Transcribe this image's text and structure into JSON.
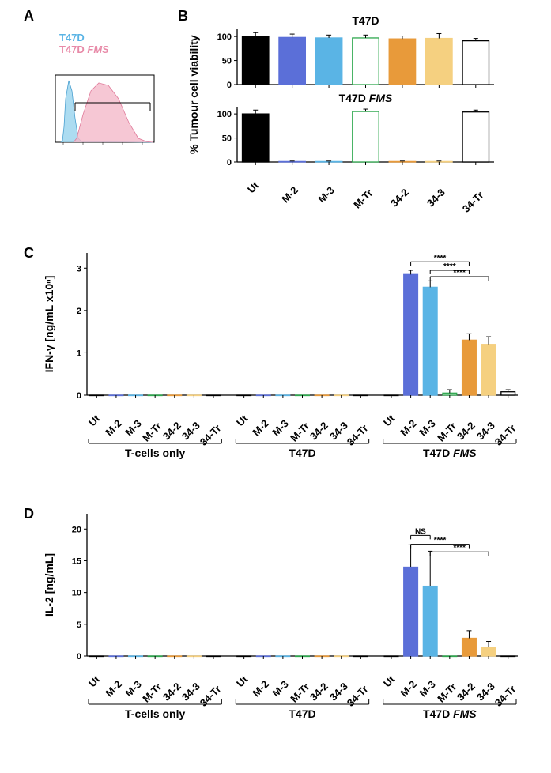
{
  "panelA": {
    "label": "A",
    "legend": {
      "line1": "T47D",
      "line2": "T47D FMS",
      "fms_italic": "FMS"
    },
    "histogram": {
      "color1": "#9ed6ef",
      "color2": "#f4b9c9",
      "width": 130,
      "height": 90
    }
  },
  "panelB": {
    "label": "B",
    "subcharts": [
      {
        "title": "T47D",
        "ylabel": "",
        "ylim": [
          0,
          100
        ],
        "yticks": [
          0,
          50,
          100
        ],
        "categories": [
          "Ut",
          "M-2",
          "M-3",
          "M-Tr",
          "34-2",
          "34-3",
          "34-Tr"
        ],
        "values": [
          100,
          98,
          97,
          97,
          95,
          96,
          91
        ],
        "errors": [
          8,
          7,
          6,
          6,
          6,
          10,
          5
        ],
        "fills": [
          "#000000",
          "#5b6fd8",
          "#5ab4e5",
          "#ffffff",
          "#e89a3a",
          "#f5d080",
          "#ffffff"
        ],
        "strokes": [
          "#000000",
          "#5b6fd8",
          "#5ab4e5",
          "#2fa84f",
          "#e89a3a",
          "#f5d080",
          "#000000"
        ]
      },
      {
        "title": "T47D FMS",
        "ylabel": "% Tumour cell viability",
        "ylim": [
          0,
          100
        ],
        "yticks": [
          0,
          50,
          100
        ],
        "categories": [
          "Ut",
          "M-2",
          "M-3",
          "M-Tr",
          "34-2",
          "34-3",
          "34-Tr"
        ],
        "values": [
          100,
          1,
          1,
          105,
          1,
          1,
          104
        ],
        "errors": [
          8,
          1,
          1,
          5,
          1,
          1,
          4
        ],
        "fills": [
          "#000000",
          "#5b6fd8",
          "#5ab4e5",
          "#ffffff",
          "#e89a3a",
          "#f5d080",
          "#ffffff"
        ],
        "strokes": [
          "#000000",
          "#5b6fd8",
          "#5ab4e5",
          "#2fa84f",
          "#e89a3a",
          "#f5d080",
          "#000000"
        ]
      }
    ]
  },
  "panelC": {
    "label": "C",
    "ylabel_html": "IFN-γ [ng/mL x10<tspan baseline-shift=\"super\" font-size=\"9\">n</tspan>]",
    "ylabel": "IFN-γ [ng/mL x10ⁿ]",
    "ylim": [
      0,
      3
    ],
    "yticks": [
      0,
      1,
      2,
      3
    ],
    "groups": [
      "T-cells only",
      "T47D",
      "T47D FMS"
    ],
    "categories": [
      "Ut",
      "M-2",
      "M-3",
      "M-Tr",
      "34-2",
      "34-3",
      "34-Tr"
    ],
    "fills": [
      "#000000",
      "#5b6fd8",
      "#5ab4e5",
      "#ffffff",
      "#e89a3a",
      "#f5d080",
      "#ffffff"
    ],
    "strokes": [
      "#000000",
      "#5b6fd8",
      "#5ab4e5",
      "#2fa84f",
      "#e89a3a",
      "#f5d080",
      "#000000"
    ],
    "values": [
      [
        0,
        0,
        0,
        0,
        0,
        0,
        0
      ],
      [
        0,
        0,
        0,
        0,
        0,
        0,
        0
      ],
      [
        0,
        2.85,
        2.55,
        0.05,
        1.3,
        1.2,
        0.08
      ]
    ],
    "errors": [
      [
        0,
        0,
        0,
        0,
        0,
        0,
        0
      ],
      [
        0,
        0,
        0,
        0,
        0,
        0,
        0
      ],
      [
        0,
        0.1,
        0.15,
        0.08,
        0.15,
        0.18,
        0.05
      ]
    ],
    "sig": [
      {
        "from": 1,
        "to": 4,
        "label": "****",
        "y": 3.15
      },
      {
        "from": 2,
        "to": 4,
        "label": "****",
        "y": 2.95
      },
      {
        "from": 2,
        "to": 5,
        "label": "****",
        "y": 2.8
      }
    ]
  },
  "panelD": {
    "label": "D",
    "ylabel": "IL-2 [ng/mL]",
    "ylim": [
      0,
      20
    ],
    "yticks": [
      0,
      5,
      10,
      15,
      20
    ],
    "groups": [
      "T-cells only",
      "T47D",
      "T47D FMS"
    ],
    "categories": [
      "Ut",
      "M-2",
      "M-3",
      "M-Tr",
      "34-2",
      "34-3",
      "34-Tr"
    ],
    "fills": [
      "#000000",
      "#5b6fd8",
      "#5ab4e5",
      "#ffffff",
      "#e89a3a",
      "#f5d080",
      "#ffffff"
    ],
    "strokes": [
      "#000000",
      "#5b6fd8",
      "#5ab4e5",
      "#2fa84f",
      "#e89a3a",
      "#f5d080",
      "#000000"
    ],
    "values": [
      [
        0,
        0,
        0,
        0,
        0,
        0,
        0
      ],
      [
        0,
        0,
        0,
        0,
        0,
        0,
        0
      ],
      [
        0,
        14,
        11,
        0,
        2.8,
        1.4,
        0
      ]
    ],
    "errors": [
      [
        0,
        0,
        0,
        0,
        0,
        0,
        0
      ],
      [
        0,
        0,
        0,
        0,
        0,
        0,
        0
      ],
      [
        0,
        3.5,
        5.5,
        0,
        1.2,
        0.9,
        0
      ]
    ],
    "sig": [
      {
        "from": 1,
        "to": 2,
        "label": "NS",
        "y": 19.0
      },
      {
        "from": 1,
        "to": 4,
        "label": "****",
        "y": 17.6
      },
      {
        "from": 2,
        "to": 5,
        "label": "****",
        "y": 16.4
      }
    ]
  },
  "layout": {
    "bar_width_ratio": 0.72,
    "axis_color": "#000000",
    "error_cap_width": 4
  }
}
